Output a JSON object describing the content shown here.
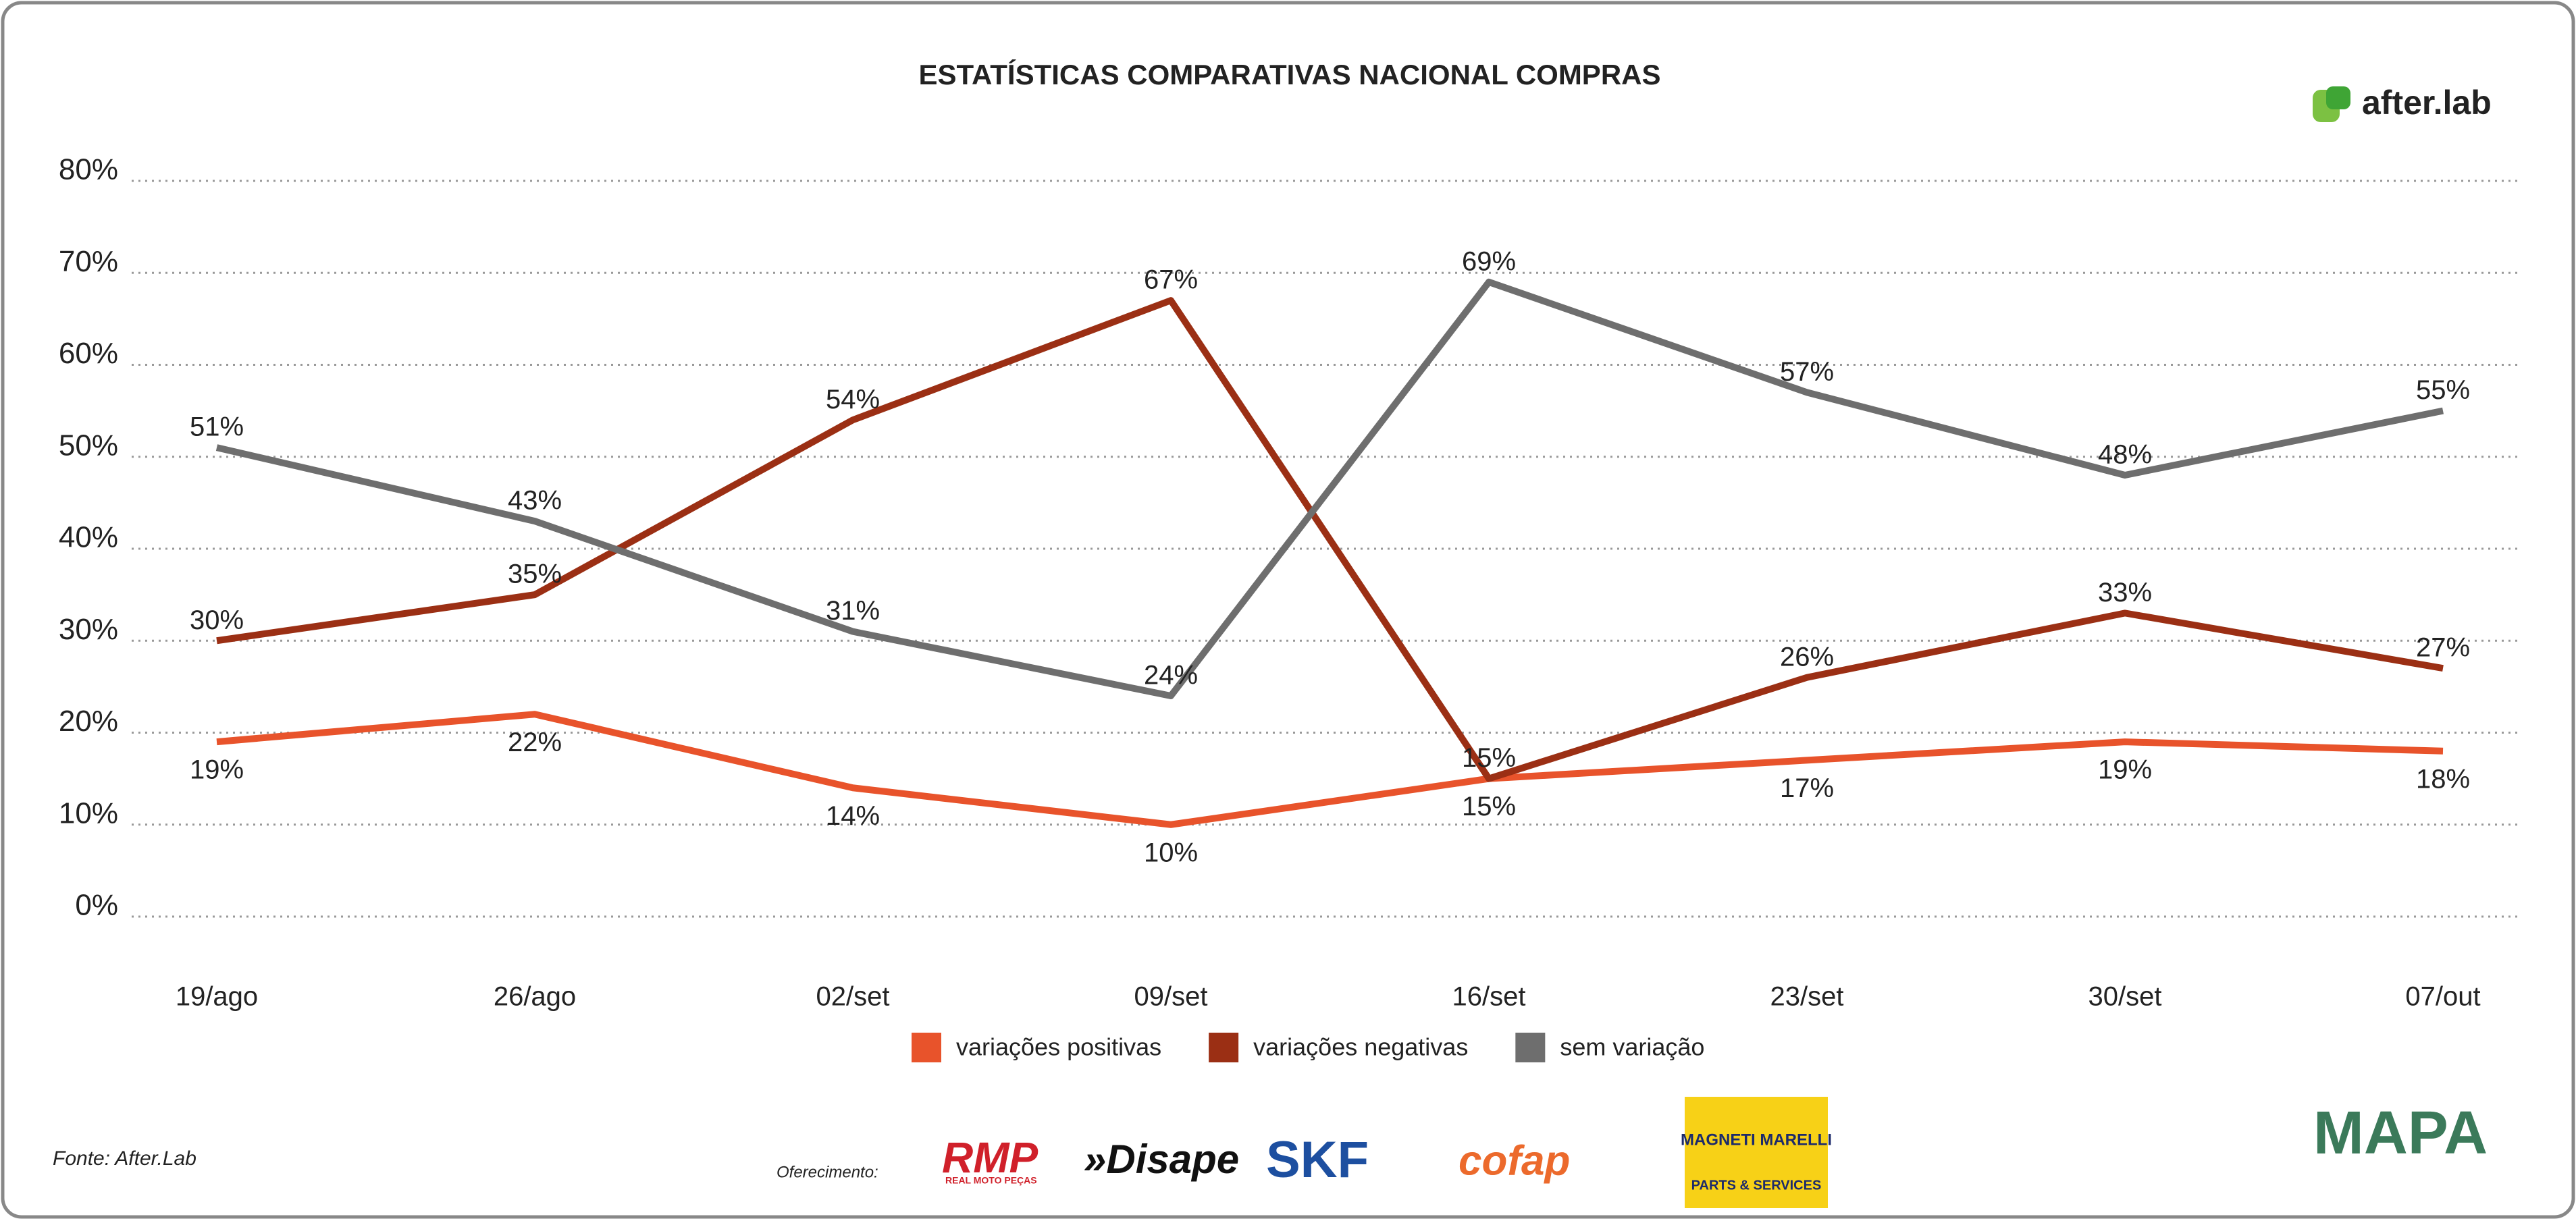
{
  "chart_data": {
    "type": "line",
    "title": "ESTATÍSTICAS COMPARATIVAS NACIONAL COMPRAS",
    "categories": [
      "19/ago",
      "26/ago",
      "02/set",
      "09/set",
      "16/set",
      "23/set",
      "30/set",
      "07/out"
    ],
    "series": [
      {
        "name": "variações positivas",
        "color": "#e8532b",
        "values": [
          19,
          22,
          14,
          10,
          15,
          17,
          19,
          18
        ],
        "value_labels": [
          "19%",
          "22%",
          "14%",
          "10%",
          "15%",
          "17%",
          "19%",
          "18%"
        ]
      },
      {
        "name": "variações negativas",
        "color": "#9b2f14",
        "values": [
          30,
          35,
          54,
          67,
          15,
          26,
          33,
          27
        ],
        "value_labels": [
          "30%",
          "35%",
          "54%",
          "67%",
          "15%",
          "26%",
          "33%",
          "27%"
        ]
      },
      {
        "name": "sem variação",
        "color": "#6e6e6e",
        "values": [
          51,
          43,
          31,
          24,
          69,
          57,
          48,
          55
        ],
        "value_labels": [
          "51%",
          "43%",
          "31%",
          "24%",
          "69%",
          "57%",
          "48%",
          "55%"
        ]
      }
    ],
    "ylim": [
      0,
      80
    ],
    "yticks": [
      {
        "value": 0,
        "label": "0%"
      },
      {
        "value": 10,
        "label": "10%"
      },
      {
        "value": 20,
        "label": "20%"
      },
      {
        "value": 30,
        "label": "30%"
      },
      {
        "value": 40,
        "label": "40%"
      },
      {
        "value": 50,
        "label": "50%"
      },
      {
        "value": 60,
        "label": "60%"
      },
      {
        "value": 70,
        "label": "70%"
      },
      {
        "value": 80,
        "label": "80%"
      }
    ],
    "grid": true,
    "legend": "bottom"
  },
  "footer": {
    "brand": "after.lab",
    "source": "Fonte: After.Lab",
    "sponsors_label": "Oferecimento:",
    "sponsors": [
      "RMP",
      "REAL MOTO PEÇAS",
      "»Disape",
      "SKF",
      "cofap",
      "MAGNETI MARELLI",
      "PARTS & SERVICES",
      "MAPA"
    ]
  }
}
